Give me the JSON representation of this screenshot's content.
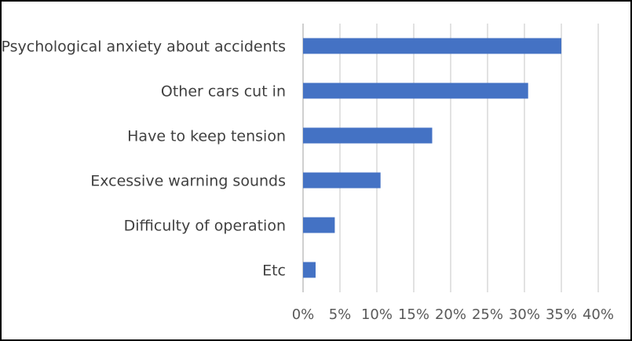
{
  "chart_data": {
    "type": "bar",
    "orientation": "horizontal",
    "categories": [
      "Psychological anxiety about accidents",
      "Other cars cut in",
      "Have to keep tension",
      "Excessive warning sounds",
      "Difficulty of operation",
      "Etc"
    ],
    "values": [
      35.0,
      30.5,
      17.5,
      10.5,
      4.3,
      1.7
    ],
    "value_unit": "%",
    "xlim": [
      0,
      40
    ],
    "x_ticks": [
      "0%",
      "5%",
      "10%",
      "15%",
      "20%",
      "25%",
      "30%",
      "35%",
      "40%"
    ],
    "title": "",
    "xlabel": "",
    "ylabel": "",
    "grid": "vertical",
    "legend": "none",
    "colors": {
      "bar": "#4472C4",
      "grid": "#D9D9D9",
      "axis": "#BFBFBF",
      "text": "#404040"
    }
  }
}
